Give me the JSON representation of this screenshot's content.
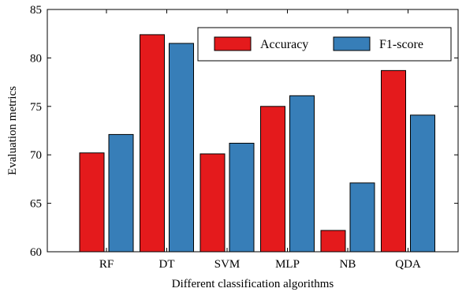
{
  "chart_data": {
    "type": "bar",
    "xlabel": "Different classification algorithms",
    "ylabel": "Evaluation metrics",
    "ylim": [
      60,
      85
    ],
    "yticks": [
      60,
      65,
      70,
      75,
      80,
      85
    ],
    "categories": [
      "RF",
      "DT",
      "SVM",
      "MLP",
      "NB",
      "QDA"
    ],
    "series": [
      {
        "name": "Accuracy",
        "color": "#e41a1c",
        "values": [
          70.2,
          82.4,
          70.1,
          75.0,
          62.2,
          78.7
        ]
      },
      {
        "name": "F1-score",
        "color": "#377eb8",
        "values": [
          72.1,
          81.5,
          71.2,
          76.1,
          67.1,
          74.1
        ]
      }
    ],
    "legend": "top-right",
    "grid": false
  }
}
